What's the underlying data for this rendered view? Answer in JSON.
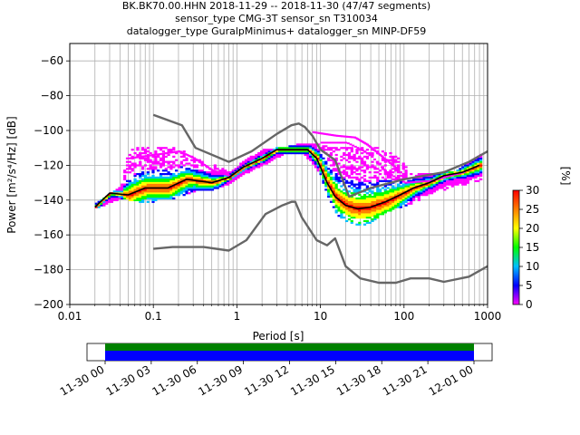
{
  "title_lines": [
    "BK.BK70.00.HHN   2018-11-29 -- 2018-11-30  (47/47 segments)",
    "sensor_type CMG-3T sensor_sn T310034",
    "datalogger_type GuralpMinimus+ datalogger_sn MINP-DF59"
  ],
  "chart_data": {
    "type": "heatmap",
    "xlabel": "Period [s]",
    "ylabel": "Power [m²/s⁴/Hz] [dB]",
    "xscale": "log",
    "xlim": [
      0.01,
      1000
    ],
    "ylim": [
      -200,
      -50
    ],
    "x_ticks": [
      0.01,
      0.1,
      1,
      10,
      100,
      1000
    ],
    "x_tick_labels": [
      "0.01",
      "0.1",
      "1",
      "10",
      "100",
      "1000"
    ],
    "y_ticks": [
      -200,
      -180,
      -160,
      -140,
      -120,
      -100,
      -80,
      -60
    ],
    "y_tick_labels": [
      "−200",
      "−180",
      "−160",
      "−140",
      "−120",
      "−100",
      "−80",
      "−60"
    ],
    "grid": true,
    "colorbar": {
      "label": "[%]",
      "range": [
        0,
        30
      ],
      "ticks": [
        0,
        5,
        10,
        15,
        20,
        25,
        30
      ],
      "tick_labels": [
        "0",
        "5",
        "10",
        "15",
        "20",
        "25",
        "30"
      ],
      "colormap": [
        "#ff00ff",
        "#0000ff",
        "#00bfff",
        "#00ff00",
        "#ffff00",
        "#ff8000",
        "#ff0000"
      ]
    },
    "series": [
      {
        "role": "nhnm",
        "color": "#666666",
        "points": [
          [
            0.1,
            -91
          ],
          [
            0.22,
            -97
          ],
          [
            0.32,
            -110
          ],
          [
            0.8,
            -118
          ],
          [
            1.5,
            -112
          ],
          [
            3,
            -102
          ],
          [
            4.5,
            -97
          ],
          [
            5.5,
            -96
          ],
          [
            6.5,
            -98
          ],
          [
            8,
            -103
          ],
          [
            10,
            -111
          ],
          [
            15,
            -117
          ],
          [
            22,
            -138
          ],
          [
            40,
            -133
          ],
          [
            100,
            -128
          ],
          [
            300,
            -124
          ],
          [
            600,
            -118
          ],
          [
            1000,
            -112
          ]
        ]
      },
      {
        "role": "nlnm",
        "color": "#666666",
        "points": [
          [
            0.1,
            -168
          ],
          [
            0.17,
            -167
          ],
          [
            0.4,
            -167
          ],
          [
            0.8,
            -169
          ],
          [
            1.3,
            -163
          ],
          [
            2.2,
            -148
          ],
          [
            3.5,
            -143
          ],
          [
            4.5,
            -141
          ],
          [
            5,
            -141
          ],
          [
            6,
            -150
          ],
          [
            9,
            -163
          ],
          [
            12,
            -166
          ],
          [
            15,
            -162
          ],
          [
            20,
            -178
          ],
          [
            30,
            -185
          ],
          [
            50,
            -187.5
          ],
          [
            80,
            -187.5
          ],
          [
            120,
            -185
          ],
          [
            200,
            -185
          ],
          [
            300,
            -187
          ],
          [
            600,
            -184
          ],
          [
            1000,
            -178
          ]
        ]
      },
      {
        "role": "mode",
        "color": "#000000",
        "points": [
          [
            0.02,
            -144
          ],
          [
            0.03,
            -136
          ],
          [
            0.05,
            -137
          ],
          [
            0.08,
            -133
          ],
          [
            0.15,
            -133
          ],
          [
            0.25,
            -128
          ],
          [
            0.35,
            -129
          ],
          [
            0.5,
            -130
          ],
          [
            0.8,
            -127
          ],
          [
            1.2,
            -121
          ],
          [
            2,
            -116
          ],
          [
            3,
            -111
          ],
          [
            5,
            -111
          ],
          [
            7,
            -111
          ],
          [
            9,
            -116
          ],
          [
            12,
            -130
          ],
          [
            15,
            -138
          ],
          [
            20,
            -143
          ],
          [
            28,
            -145
          ],
          [
            40,
            -144
          ],
          [
            60,
            -141
          ],
          [
            90,
            -137
          ],
          [
            130,
            -133
          ],
          [
            200,
            -130
          ],
          [
            300,
            -126
          ],
          [
            500,
            -124
          ],
          [
            800,
            -120
          ]
        ]
      }
    ],
    "scattered_psd": {
      "upper": [
        [
          0.02,
          -142
        ],
        [
          0.04,
          -133
        ],
        [
          0.05,
          -110
        ],
        [
          0.1,
          -110
        ],
        [
          0.2,
          -111
        ],
        [
          0.3,
          -116
        ],
        [
          0.5,
          -120
        ],
        [
          0.8,
          -125
        ],
        [
          1.2,
          -118
        ],
        [
          2,
          -112
        ],
        [
          4,
          -110
        ],
        [
          6,
          -108
        ],
        [
          9,
          -108
        ],
        [
          12,
          -110
        ],
        [
          18,
          -111
        ],
        [
          30,
          -110
        ],
        [
          50,
          -110
        ],
        [
          80,
          -116
        ],
        [
          120,
          -125
        ],
        [
          200,
          -126
        ],
        [
          400,
          -124
        ],
        [
          800,
          -114
        ]
      ],
      "lower": [
        [
          0.02,
          -144
        ],
        [
          0.04,
          -138
        ],
        [
          0.08,
          -141
        ],
        [
          0.15,
          -139
        ],
        [
          0.3,
          -134
        ],
        [
          0.5,
          -133
        ],
        [
          0.8,
          -130
        ],
        [
          1.2,
          -124
        ],
        [
          2,
          -119
        ],
        [
          3.5,
          -113
        ],
        [
          6,
          -112
        ],
        [
          9,
          -122
        ],
        [
          12,
          -138
        ],
        [
          15,
          -147
        ],
        [
          22,
          -154
        ],
        [
          35,
          -153
        ],
        [
          50,
          -148
        ],
        [
          80,
          -144
        ],
        [
          120,
          -141
        ],
        [
          200,
          -136
        ],
        [
          400,
          -132
        ],
        [
          800,
          -128
        ]
      ],
      "outliers": [
        [
          [
            0.05,
            -116
          ],
          [
            0.1,
            -114
          ],
          [
            0.2,
            -112
          ],
          [
            0.3,
            -116
          ],
          [
            0.5,
            -123
          ],
          [
            0.8,
            -126
          ]
        ],
        [
          [
            10,
            -107
          ],
          [
            20,
            -107
          ],
          [
            30,
            -111
          ],
          [
            40,
            -115
          ],
          [
            60,
            -124
          ],
          [
            100,
            -130
          ],
          [
            200,
            -129
          ],
          [
            500,
            -124
          ]
        ],
        [
          [
            8,
            -101
          ],
          [
            15,
            -103
          ],
          [
            25,
            -104
          ],
          [
            35,
            -108
          ],
          [
            50,
            -114
          ],
          [
            80,
            -122
          ]
        ]
      ]
    }
  },
  "timeline": {
    "tick_labels": [
      "11-30 00",
      "11-30 03",
      "11-30 06",
      "11-30 09",
      "11-30 12",
      "11-30 15",
      "11-30 18",
      "11-30 21",
      "12-01 00"
    ],
    "bar_colors": [
      "#008000",
      "#0000ff"
    ],
    "coverage_start": 0,
    "coverage_end": 1
  }
}
